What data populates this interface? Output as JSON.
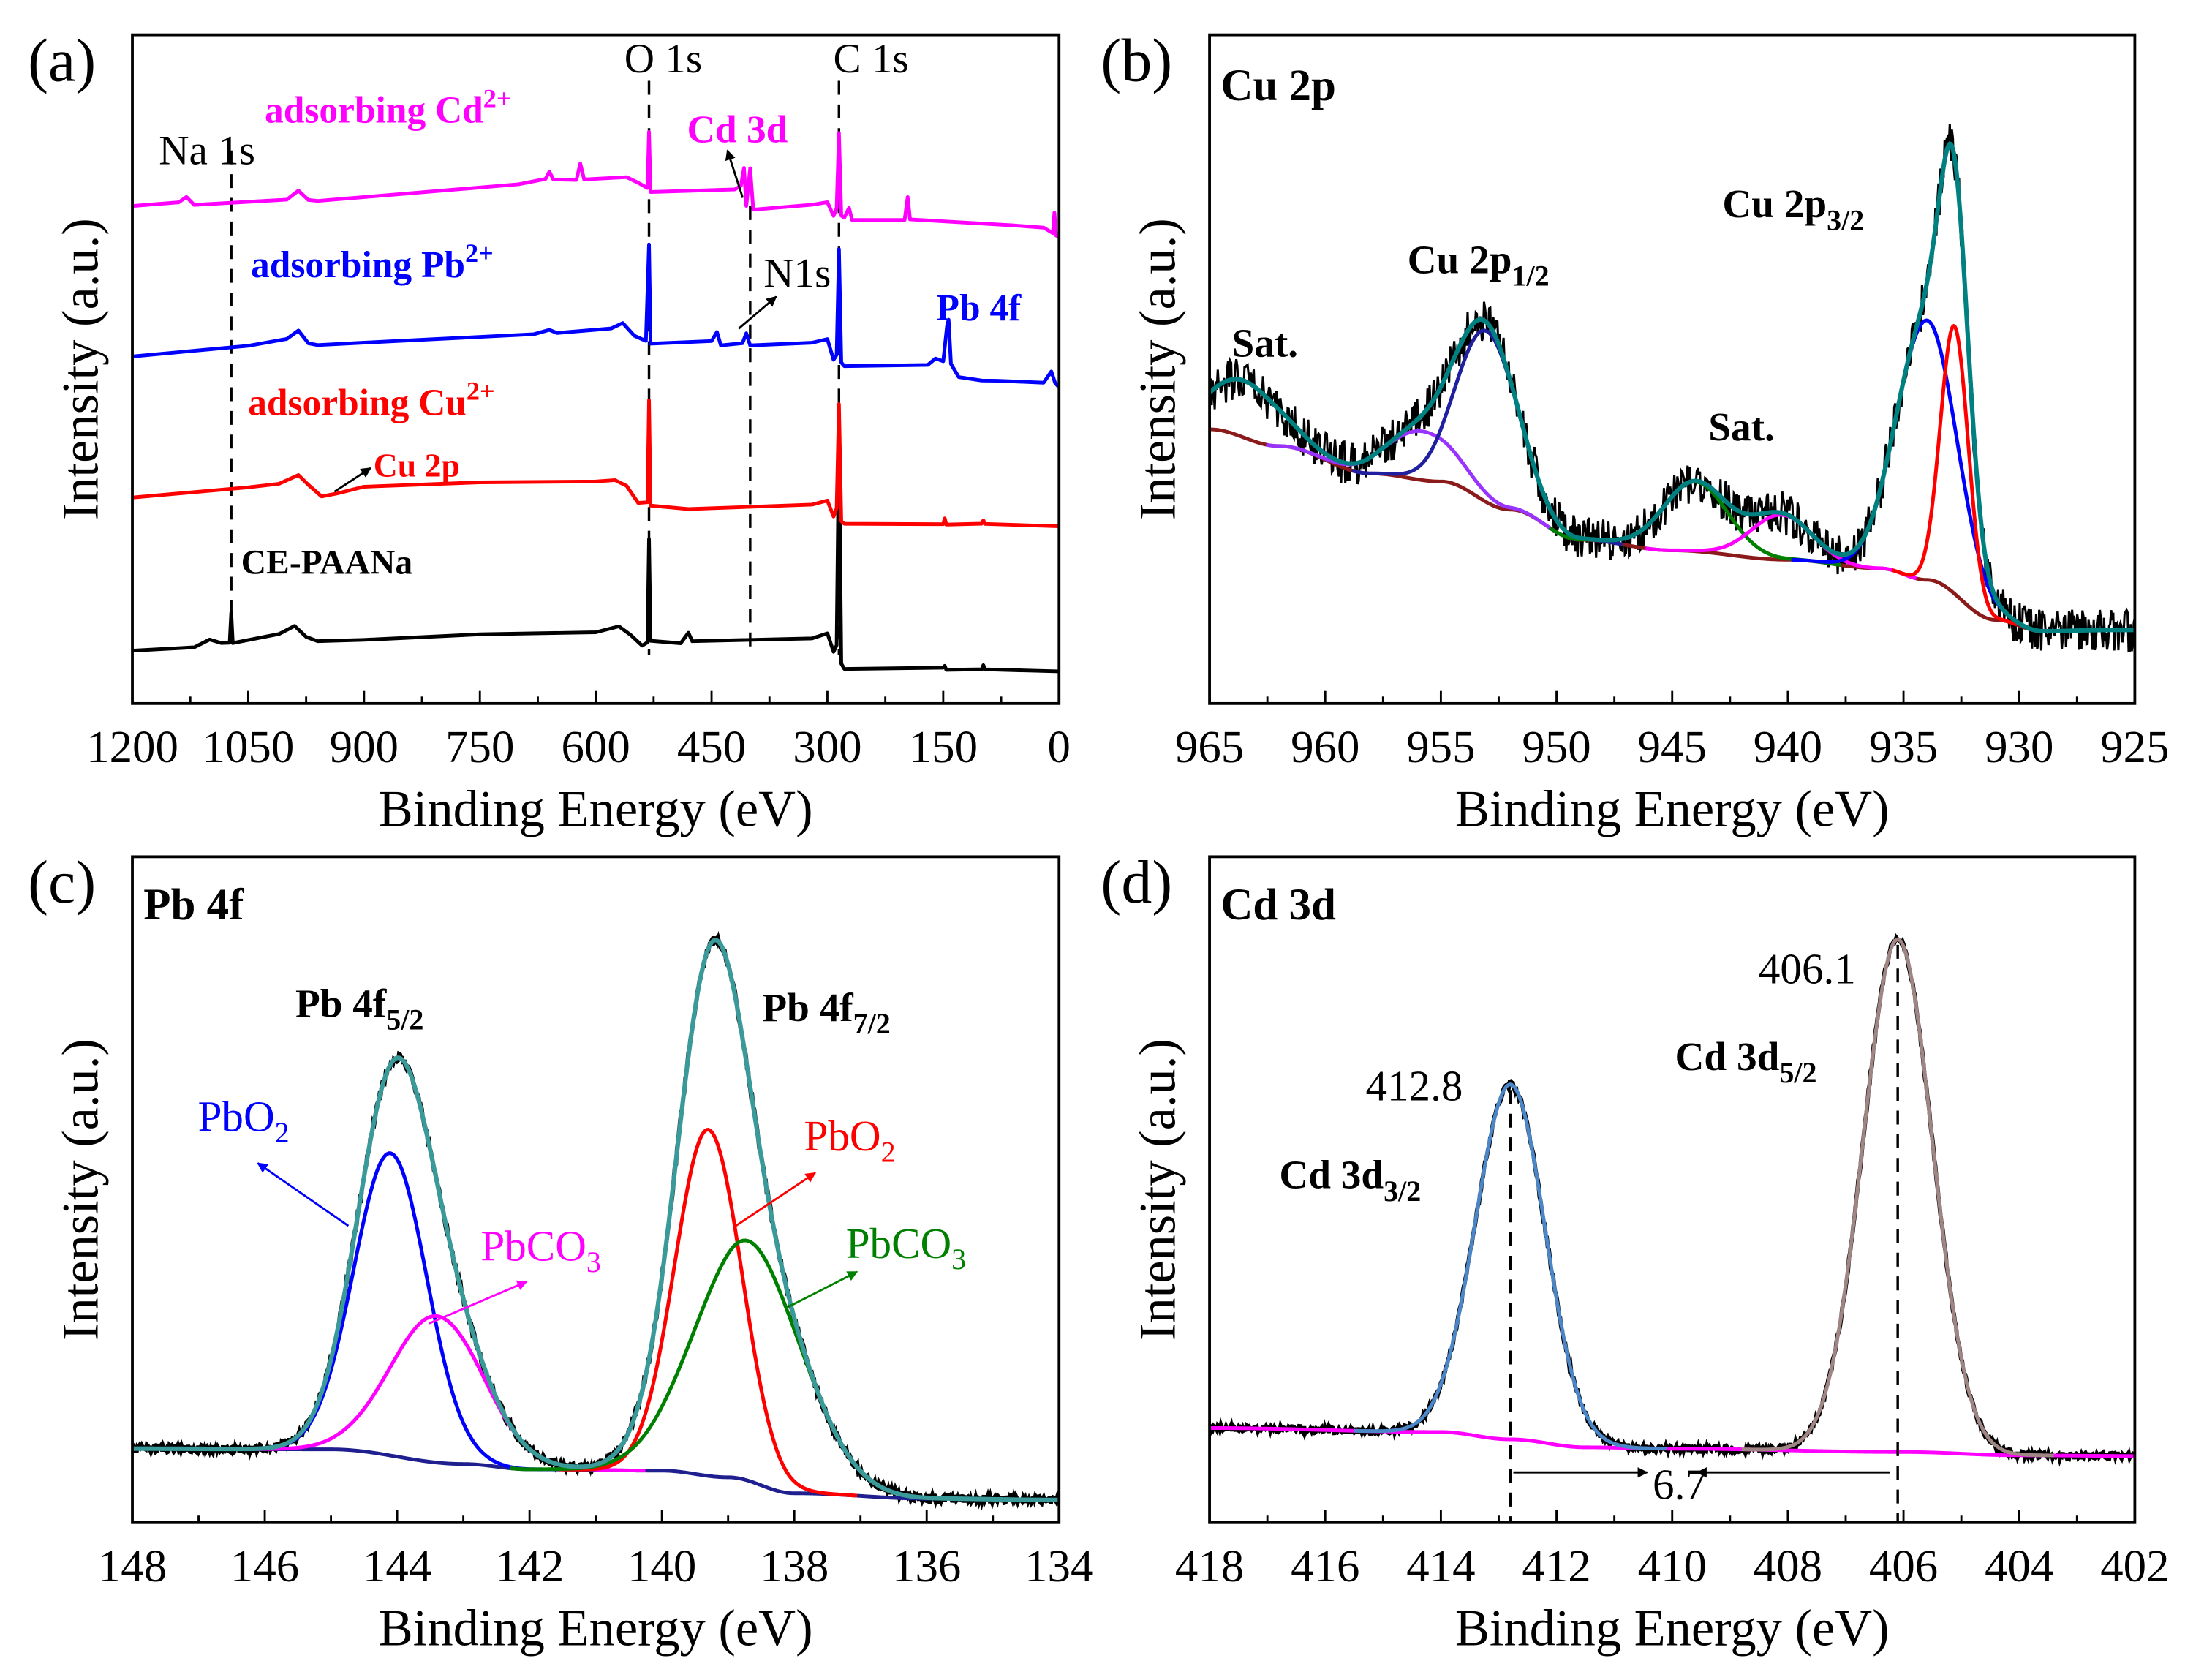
{
  "chart_data": [
    {
      "id": "a",
      "type": "line",
      "panel_label": "(a)",
      "title": "",
      "xlabel": "Binding Energy (eV)",
      "ylabel": "Intensity (a.u.)",
      "xlim": [
        1200,
        0
      ],
      "ylim": [
        0,
        100
      ],
      "x_ticks": [
        1200,
        1050,
        900,
        750,
        600,
        450,
        300,
        150,
        0
      ],
      "x_tick_labels": [
        "1200",
        "1050",
        "900",
        "750",
        "600",
        "450",
        "300",
        "150",
        "0"
      ],
      "minor_step": 75,
      "reference_lines": [
        {
          "label": "Na 1s",
          "x": 1072
        },
        {
          "label": "O 1s",
          "x": 531
        },
        {
          "label": "N1s",
          "x": 400
        },
        {
          "label": "C 1s",
          "x": 285
        }
      ],
      "series": [
        {
          "name": "CE-PAANa",
          "color": "#000000",
          "points": [
            [
              1200,
              7.9
            ],
            [
              1120,
              8.5
            ],
            [
              1100,
              9.5
            ],
            [
              1085,
              8.8
            ],
            [
              1074,
              9
            ],
            [
              1072,
              13.5
            ],
            [
              1070,
              9.2
            ],
            [
              1010,
              10.2
            ],
            [
              990,
              11.5
            ],
            [
              975,
              9.8
            ],
            [
              960,
              9.2
            ],
            [
              900,
              9.6
            ],
            [
              750,
              10.2
            ],
            [
              600,
              10.8
            ],
            [
              570,
              11.5
            ],
            [
              555,
              10.4
            ],
            [
              540,
              8.8
            ],
            [
              533,
              9
            ],
            [
              531,
              24.4
            ],
            [
              529,
              9.2
            ],
            [
              490,
              9.2
            ],
            [
              480,
              10.6
            ],
            [
              475,
              9.2
            ],
            [
              320,
              9.8
            ],
            [
              300,
              10.6
            ],
            [
              292,
              7.8
            ],
            [
              288,
              8.5
            ],
            [
              285,
              40
            ],
            [
              282,
              6
            ],
            [
              278,
              5.2
            ],
            [
              150,
              5.2
            ],
            [
              148,
              5.8
            ],
            [
              146,
              5.2
            ],
            [
              100,
              5.2
            ],
            [
              98,
              5.8
            ],
            [
              96,
              5.1
            ],
            [
              0,
              4.8
            ]
          ]
        },
        {
          "name": "adsorbing Cu2+",
          "color": "#ff0000",
          "points": [
            [
              1200,
              30.8
            ],
            [
              1050,
              32.2
            ],
            [
              1010,
              33
            ],
            [
              985,
              34.2
            ],
            [
              972,
              32.5
            ],
            [
              955,
              30.8
            ],
            [
              935,
              31.5
            ],
            [
              900,
              32.4
            ],
            [
              750,
              32.9
            ],
            [
              600,
              33.1
            ],
            [
              575,
              33.6
            ],
            [
              560,
              32.5
            ],
            [
              545,
              30.2
            ],
            [
              533,
              30
            ],
            [
              531,
              45.4
            ],
            [
              529,
              29.5
            ],
            [
              480,
              29.2
            ],
            [
              320,
              29.8
            ],
            [
              300,
              30.4
            ],
            [
              292,
              28
            ],
            [
              288,
              29
            ],
            [
              285,
              44.8
            ],
            [
              282,
              27.5
            ],
            [
              278,
              27
            ],
            [
              150,
              27
            ],
            [
              148,
              27.6
            ],
            [
              146,
              27
            ],
            [
              100,
              27
            ],
            [
              98,
              27.5
            ],
            [
              96,
              26.9
            ],
            [
              0,
              26.5
            ]
          ]
        },
        {
          "name": "adsorbing Pb2+",
          "color": "#0000ff",
          "points": [
            [
              1200,
              51.9
            ],
            [
              1050,
              53.5
            ],
            [
              1000,
              54.5
            ],
            [
              985,
              55.6
            ],
            [
              972,
              53.8
            ],
            [
              960,
              53.5
            ],
            [
              900,
              54.2
            ],
            [
              680,
              55.2
            ],
            [
              660,
              55.9
            ],
            [
              650,
              55.4
            ],
            [
              580,
              56
            ],
            [
              565,
              57
            ],
            [
              550,
              55
            ],
            [
              535,
              54
            ],
            [
              531,
              68.8
            ],
            [
              529,
              53.8
            ],
            [
              450,
              54
            ],
            [
              443,
              55.5
            ],
            [
              438,
              53.8
            ],
            [
              410,
              53.8
            ],
            [
              405,
              55.3
            ],
            [
              400,
              53.6
            ],
            [
              320,
              53.8
            ],
            [
              300,
              54.4
            ],
            [
              292,
              51.5
            ],
            [
              288,
              52
            ],
            [
              285,
              67.7
            ],
            [
              282,
              51
            ],
            [
              278,
              50.6
            ],
            [
              170,
              50.6
            ],
            [
              160,
              51.5
            ],
            [
              150,
              51
            ],
            [
              145,
              56.5
            ],
            [
              143,
              57.3
            ],
            [
              140,
              51
            ],
            [
              130,
              48.6
            ],
            [
              100,
              48.5
            ],
            [
              80,
              48.4
            ],
            [
              20,
              48
            ],
            [
              10,
              49.5
            ],
            [
              5,
              48
            ],
            [
              0,
              47.3
            ]
          ]
        },
        {
          "name": "adsorbing Cd2+",
          "color": "#ff00ff",
          "points": [
            [
              1200,
              74.4
            ],
            [
              1140,
              74.8
            ],
            [
              1130,
              75.8
            ],
            [
              1120,
              74.6
            ],
            [
              1000,
              75.6
            ],
            [
              985,
              76.8
            ],
            [
              972,
              75.2
            ],
            [
              960,
              75
            ],
            [
              700,
              77.5
            ],
            [
              665,
              78.2
            ],
            [
              660,
              79.5
            ],
            [
              655,
              78.2
            ],
            [
              625,
              78.4
            ],
            [
              620,
              81
            ],
            [
              615,
              78.5
            ],
            [
              560,
              78.7
            ],
            [
              545,
              77.8
            ],
            [
              533,
              77
            ],
            [
              531,
              85.4
            ],
            [
              529,
              76.5
            ],
            [
              420,
              76.8
            ],
            [
              412,
              77.2
            ],
            [
              408,
              80
            ],
            [
              405,
              74.6
            ],
            [
              400,
              80
            ],
            [
              396,
              74
            ],
            [
              320,
              74.5
            ],
            [
              300,
              75
            ],
            [
              292,
              73
            ],
            [
              288,
              74
            ],
            [
              285,
              85.4
            ],
            [
              282,
              73
            ],
            [
              278,
              72.8
            ],
            [
              272,
              74.2
            ],
            [
              268,
              72.5
            ],
            [
              200,
              72.3
            ],
            [
              196,
              75.5
            ],
            [
              193,
              72.3
            ],
            [
              60,
              71.5
            ],
            [
              20,
              71
            ],
            [
              8,
              70.2
            ],
            [
              6,
              73.5
            ],
            [
              4,
              70
            ],
            [
              0,
              69.8
            ]
          ]
        }
      ],
      "annotations": {
        "cd_series": {
          "main": "adsorbing Cd",
          "sup": "2+"
        },
        "cd3d": "Cd 3d",
        "pb_series": {
          "main": "adsorbing Pb",
          "sup": "2+"
        },
        "pb4f": "Pb 4f",
        "cu_series": {
          "main": "adsorbing Cu",
          "sup": "2+"
        },
        "cu2p": "Cu 2p",
        "ce": "CE-PAANa"
      }
    },
    {
      "id": "b",
      "type": "line",
      "panel_label": "(b)",
      "title": "Cu 2p",
      "xlabel": "Binding Energy (eV)",
      "ylabel": "Intensity (a.u.)",
      "xlim": [
        965,
        925
      ],
      "ylim": [
        0,
        100
      ],
      "x_ticks": [
        965,
        960,
        955,
        950,
        945,
        940,
        935,
        930,
        925
      ],
      "x_tick_labels": [
        "965",
        "960",
        "955",
        "950",
        "945",
        "940",
        "935",
        "930",
        "925"
      ],
      "minor_step": 2.5,
      "background": {
        "color": "#8b1a1a",
        "points": [
          [
            965,
            41
          ],
          [
            962,
            38.5
          ],
          [
            958,
            34.4
          ],
          [
            955,
            33.2
          ],
          [
            952,
            29
          ],
          [
            949,
            24.5
          ],
          [
            945,
            22.9
          ],
          [
            940,
            21.5
          ],
          [
            936,
            20.2
          ],
          [
            934,
            18.5
          ],
          [
            931,
            12.5
          ],
          [
            929,
            10.8
          ],
          [
            926,
            11
          ]
        ]
      },
      "components": [
        {
          "name": "satellite 963.5",
          "color": "#008080",
          "center": 963.5,
          "height": 8.5,
          "sigma": 1.6,
          "draw": false
        },
        {
          "name": "Cu 2p1/2 satellite",
          "color": "#9933ff",
          "center": 955.8,
          "height": 7.3,
          "sigma": 1.5,
          "draw": true
        },
        {
          "name": "Cu 2p1/2",
          "color": "#1f1f9f",
          "center": 953,
          "height": 25.6,
          "sigma": 1.3,
          "draw": true
        },
        {
          "name": "satellite 944",
          "color": "#008000",
          "center": 944,
          "height": 10.4,
          "sigma": 1.4,
          "draw": true
        },
        {
          "name": "satellite 940.3",
          "color": "#ff00ff",
          "center": 940.3,
          "height": 6.7,
          "sigma": 1.3,
          "draw": true
        },
        {
          "name": "Cu 2p3/2 (a)",
          "color": "#0000ff",
          "center": 934,
          "height": 38.8,
          "sigma": 1.3,
          "draw": true
        },
        {
          "name": "Cu 2p3/2 (b)",
          "color": "#ff0000",
          "center": 932.8,
          "height": 40,
          "sigma": 0.6,
          "draw": true
        }
      ],
      "envelope_color": "#008080",
      "raw_color": "#000000",
      "noise_amplitude": 3.2,
      "annotations": {
        "sat_left": "Sat.",
        "p12": {
          "main": "Cu 2p",
          "sub": "1/2"
        },
        "sat_mid": "Sat.",
        "p32": {
          "main": "Cu 2p",
          "sub": "3/2"
        }
      }
    },
    {
      "id": "c",
      "type": "line",
      "panel_label": "(c)",
      "title": "Pb 4f",
      "xlabel": "Binding Energy (eV)",
      "ylabel": "Intensity (a.u.)",
      "xlim": [
        148,
        134
      ],
      "ylim": [
        0,
        100
      ],
      "x_ticks": [
        148,
        146,
        144,
        142,
        140,
        138,
        136,
        134
      ],
      "x_tick_labels": [
        "148",
        "146",
        "144",
        "142",
        "140",
        "138",
        "136",
        "134"
      ],
      "minor_step": 1,
      "background": {
        "color": "#1f1f8f",
        "points": [
          [
            148,
            11.1
          ],
          [
            145,
            11
          ],
          [
            143,
            8.8
          ],
          [
            142,
            8
          ],
          [
            140,
            7.8
          ],
          [
            139,
            6.8
          ],
          [
            138,
            4.4
          ],
          [
            136,
            3.6
          ],
          [
            134,
            3.4
          ]
        ]
      },
      "components": [
        {
          "name": "PbO2 4f5/2",
          "color": "#0000ff",
          "center": 144.1,
          "height": 45.4,
          "sigma": 0.55,
          "draw": true
        },
        {
          "name": "PbCO3 4f5/2",
          "color": "#ff00ff",
          "center": 143.4,
          "height": 22,
          "sigma": 0.7,
          "draw": true
        },
        {
          "name": "PbO2 4f7/2",
          "color": "#ff0000",
          "center": 139.3,
          "height": 52,
          "sigma": 0.5,
          "draw": true
        },
        {
          "name": "PbCO3 4f7/2",
          "color": "#008000",
          "center": 138.7,
          "height": 36,
          "sigma": 0.8,
          "draw": true
        }
      ],
      "envelope_color": "#3a9a9a",
      "raw_color": "#000000",
      "noise_amplitude": 0.6,
      "annotations": {
        "f52": {
          "main": "Pb 4f",
          "sub": "5/2"
        },
        "f72": {
          "main": "Pb 4f",
          "sub": "7/2"
        },
        "pbo2_left": {
          "main": "PbO",
          "sub": "2"
        },
        "pbco3_left": {
          "main": "PbCO",
          "sub": "3"
        },
        "pbo2_right": {
          "main": "PbO",
          "sub": "2"
        },
        "pbco3_right": {
          "main": "PbCO",
          "sub": "3"
        }
      }
    },
    {
      "id": "d",
      "type": "line",
      "panel_label": "(d)",
      "title": "Cd 3d",
      "xlabel": "Binding Energy (eV)",
      "ylabel": "Intensity (a.u.)",
      "xlim": [
        418,
        402
      ],
      "ylim": [
        0,
        100
      ],
      "x_ticks": [
        418,
        416,
        414,
        412,
        410,
        408,
        406,
        404,
        402
      ],
      "x_tick_labels": [
        "418",
        "416",
        "414",
        "412",
        "410",
        "408",
        "406",
        "404",
        "402"
      ],
      "minor_step": 1,
      "background": {
        "color": "#ff00ff",
        "points": [
          [
            418,
            14.2
          ],
          [
            414,
            13.6
          ],
          [
            412.8,
            12.5
          ],
          [
            411.5,
            11.3
          ],
          [
            410,
            11.1
          ],
          [
            406,
            10.6
          ],
          [
            404,
            10.1
          ],
          [
            402,
            10
          ]
        ]
      },
      "components": [
        {
          "name": "Cd 3d3/2",
          "color": "#4a86c8",
          "center": 412.8,
          "height": 53.3,
          "sigma": 0.6,
          "draw": true
        },
        {
          "name": "Cd 3d5/2",
          "color": "#a08585",
          "center": 406.1,
          "height": 77,
          "sigma": 0.6,
          "draw": true
        }
      ],
      "envelope_color": null,
      "raw_color": "#000000",
      "noise_amplitude": 0.5,
      "peak_markers": [
        412.8,
        406.1
      ],
      "annotations": {
        "v4128": "412.8",
        "d32": {
          "main": "Cd 3d",
          "sub": "3/2"
        },
        "v4061": "406.1",
        "d52": {
          "main": "Cd 3d",
          "sub": "5/2"
        },
        "split": "6.7"
      }
    }
  ]
}
